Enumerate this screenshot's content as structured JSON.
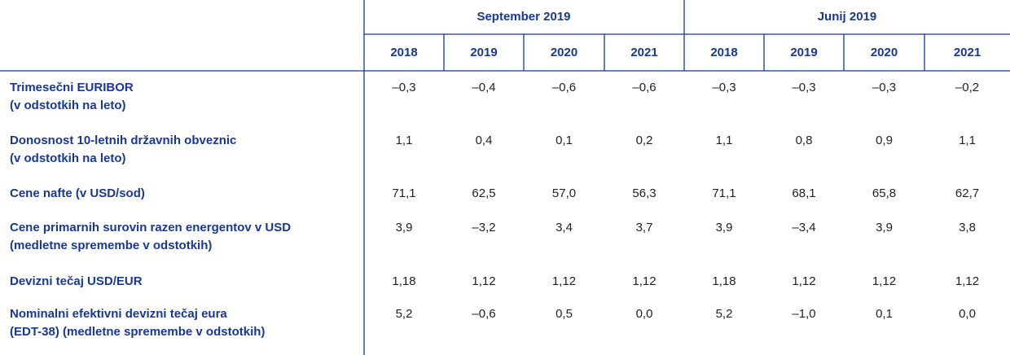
{
  "table": {
    "groups": [
      "September 2019",
      "Junij 2019"
    ],
    "years": [
      "2018",
      "2019",
      "2020",
      "2021",
      "2018",
      "2019",
      "2020",
      "2021"
    ],
    "rows": [
      {
        "label": [
          "Trimesečni EURIBOR",
          "(v odstotkih na leto)"
        ],
        "values": [
          "–0,3",
          "–0,4",
          "–0,6",
          "–0,6",
          "–0,3",
          "–0,3",
          "–0,3",
          "–0,2"
        ]
      },
      {
        "label": [
          "Donosnost 10-letnih državnih obveznic",
          "(v odstotkih na leto)"
        ],
        "values": [
          "1,1",
          "0,4",
          "0,1",
          "0,2",
          "1,1",
          "0,8",
          "0,9",
          "1,1"
        ]
      },
      {
        "label": [
          "Cene nafte (v USD/sod)"
        ],
        "values": [
          "71,1",
          "62,5",
          "57,0",
          "56,3",
          "71,1",
          "68,1",
          "65,8",
          "62,7"
        ]
      },
      {
        "label": [
          "Cene primarnih surovin razen energentov v USD",
          "(medletne spremembe v odstotkih)"
        ],
        "values": [
          "3,9",
          "–3,2",
          "3,4",
          "3,7",
          "3,9",
          "–3,4",
          "3,9",
          "3,8"
        ]
      },
      {
        "label": [
          "Devizni tečaj USD/EUR"
        ],
        "values": [
          "1,18",
          "1,12",
          "1,12",
          "1,12",
          "1,18",
          "1,12",
          "1,12",
          "1,12"
        ]
      },
      {
        "label": [
          "Nominalni efektivni devizni tečaj eura",
          "(EDT-38) (medletne spremembe v odstotkih)"
        ],
        "values": [
          "5,2",
          "–0,6",
          "0,5",
          "0,0",
          "5,2",
          "–1,0",
          "0,1",
          "0,0"
        ]
      }
    ]
  }
}
